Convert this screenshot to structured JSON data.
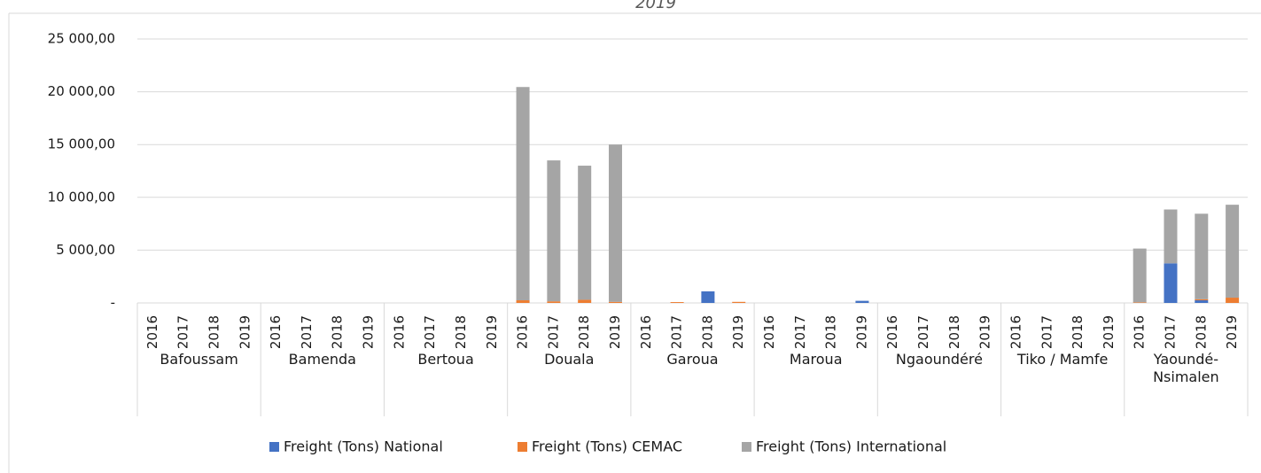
{
  "chart_data": {
    "type": "stacked_bar",
    "title": "2019",
    "categories": [
      "2016",
      "2017",
      "2018",
      "2019",
      "2016",
      "2017",
      "2018",
      "2019",
      "2016",
      "2017",
      "2018",
      "2019",
      "2016",
      "2017",
      "2018",
      "2019",
      "2016",
      "2017",
      "2018",
      "2019",
      "2016",
      "2017",
      "2018",
      "2019",
      "2016",
      "2017",
      "2018",
      "2019",
      "2016",
      "2017",
      "2018",
      "2019",
      "2016",
      "2017",
      "2018",
      "2019"
    ],
    "groups": [
      "Bafoussam",
      "Bamenda",
      "Bertoua",
      "Douala",
      "Garoua",
      "Maroua",
      "Ngaoundéré",
      "Tiko / Mamfe",
      "Yaoundé-Nsimalen"
    ],
    "series": [
      {
        "name": "Freight (Tons) National",
        "color": "#4472c4",
        "values": [
          0,
          0,
          0,
          0,
          0,
          0,
          0,
          0,
          0,
          0,
          0,
          0,
          0,
          0,
          0,
          0,
          0,
          0,
          1100,
          0,
          0,
          0,
          0,
          200,
          0,
          0,
          0,
          0,
          0,
          0,
          0,
          0,
          0,
          3750,
          250,
          0
        ]
      },
      {
        "name": "Freight (Tons) CEMAC",
        "color": "#ed7d31",
        "values": [
          0,
          0,
          0,
          0,
          0,
          0,
          0,
          0,
          0,
          0,
          0,
          0,
          250,
          150,
          300,
          100,
          0,
          80,
          0,
          100,
          0,
          0,
          0,
          0,
          0,
          0,
          0,
          0,
          0,
          0,
          0,
          0,
          50,
          0,
          100,
          500
        ]
      },
      {
        "name": "Freight (Tons) International",
        "color": "#a5a5a5",
        "values": [
          0,
          0,
          0,
          0,
          0,
          0,
          0,
          0,
          0,
          0,
          0,
          0,
          20200,
          13350,
          12700,
          14900,
          0,
          0,
          0,
          0,
          0,
          0,
          0,
          0,
          0,
          0,
          0,
          0,
          0,
          0,
          0,
          0,
          5100,
          5100,
          8100,
          8800
        ]
      }
    ],
    "ylim": [
      0,
      25000
    ],
    "yticks": [
      {
        "value": 0,
        "label": "-"
      },
      {
        "value": 5000,
        "label": "5 000,00"
      },
      {
        "value": 10000,
        "label": "10 000,00"
      },
      {
        "value": 15000,
        "label": "15 000,00"
      },
      {
        "value": 20000,
        "label": "20 000,00"
      },
      {
        "value": 25000,
        "label": "25 000,00"
      }
    ],
    "grid": true,
    "legend": "bottom"
  }
}
